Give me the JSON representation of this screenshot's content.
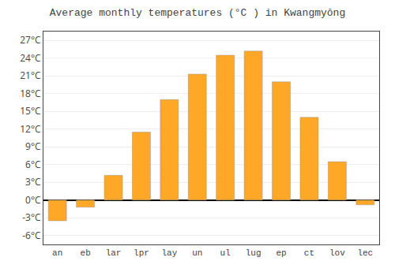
{
  "chart_data": {
    "type": "bar",
    "title": "Average monthly temperatures (°C ) in Kwangmyŏng",
    "categories": [
      "an",
      "eb",
      "lar",
      "lpr",
      "lay",
      "un",
      "ul",
      "lug",
      "ep",
      "ct",
      "lov",
      "lec"
    ],
    "values": [
      -3.5,
      -1.2,
      4.2,
      11.5,
      17.0,
      21.3,
      24.5,
      25.2,
      20.0,
      14.0,
      6.5,
      -0.8
    ],
    "color": "#FFA726",
    "ylim": [
      -7.5,
      28.5
    ],
    "yticks": [
      {
        "value": -6,
        "label": "-6°C"
      },
      {
        "value": -3,
        "label": "-3°C"
      },
      {
        "value": 0,
        "label": "0°C"
      },
      {
        "value": 3,
        "label": "3°C"
      },
      {
        "value": 6,
        "label": "6°C"
      },
      {
        "value": 9,
        "label": "9°C"
      },
      {
        "value": 12,
        "label": "12°C"
      },
      {
        "value": 15,
        "label": "15°C"
      },
      {
        "value": 18,
        "label": "18°C"
      },
      {
        "value": 21,
        "label": "21°C"
      },
      {
        "value": 24,
        "label": "24°C"
      },
      {
        "value": 27,
        "label": "27°C"
      }
    ],
    "grid": true
  }
}
